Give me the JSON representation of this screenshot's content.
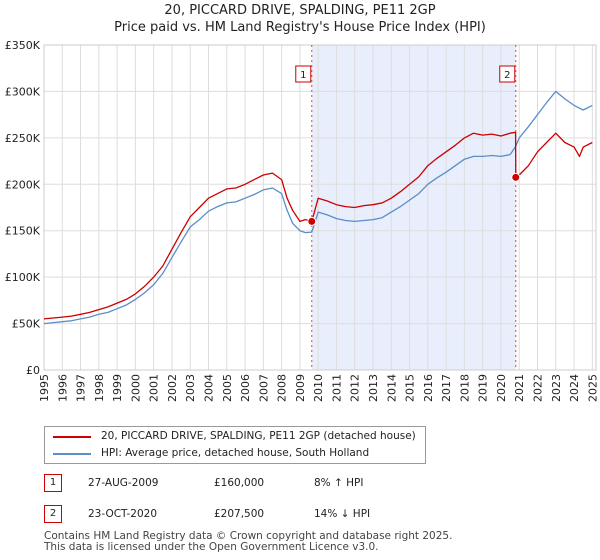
{
  "title_line1": "20, PICCARD DRIVE, SPALDING, PE11 2GP",
  "title_line2": "Price paid vs. HM Land Registry's House Price Index (HPI)",
  "chart_data": {
    "type": "line",
    "title": "20, PICCARD DRIVE, SPALDING, PE11 2GP",
    "subtitle": "Price paid vs. HM Land Registry's House Price Index (HPI)",
    "xlabel": "",
    "ylabel": "",
    "xlim": [
      1995,
      2025.2
    ],
    "ylim": [
      0,
      350000
    ],
    "y_ticks": [
      0,
      50000,
      100000,
      150000,
      200000,
      250000,
      300000,
      350000
    ],
    "y_tick_labels": [
      "£0",
      "£50K",
      "£100K",
      "£150K",
      "£200K",
      "£250K",
      "£300K",
      "£350K"
    ],
    "x_ticks": [
      1995,
      1996,
      1997,
      1998,
      1999,
      2000,
      2001,
      2002,
      2003,
      2004,
      2005,
      2006,
      2007,
      2008,
      2009,
      2010,
      2011,
      2012,
      2013,
      2014,
      2015,
      2016,
      2017,
      2018,
      2019,
      2020,
      2021,
      2022,
      2023,
      2024,
      2025
    ],
    "x_tick_labels": [
      "1995",
      "1996",
      "1997",
      "1998",
      "1999",
      "2000",
      "2001",
      "2002",
      "2003",
      "2004",
      "2005",
      "2006",
      "2007",
      "2008",
      "2009",
      "2010",
      "2011",
      "2012",
      "2013",
      "2014",
      "2015",
      "2016",
      "2017",
      "2018",
      "2019",
      "2020",
      "2021",
      "2022",
      "2023",
      "2024",
      "2025"
    ],
    "grid": true,
    "shaded_region": [
      2009.65,
      2020.81
    ],
    "series": [
      {
        "name": "20, PICCARD DRIVE, SPALDING, PE11 2GP (detached house)",
        "color": "#cc0000",
        "x": [
          1995,
          1995.5,
          1996,
          1996.5,
          1997,
          1997.5,
          1998,
          1998.5,
          1999,
          1999.5,
          2000,
          2000.5,
          2001,
          2001.5,
          2002,
          2002.5,
          2003,
          2003.5,
          2004,
          2004.5,
          2005,
          2005.5,
          2006,
          2006.5,
          2007,
          2007.5,
          2008,
          2008.3,
          2008.6,
          2009,
          2009.3,
          2009.65,
          2010,
          2010.5,
          2011,
          2011.5,
          2012,
          2012.5,
          2013,
          2013.5,
          2014,
          2014.5,
          2015,
          2015.5,
          2016,
          2016.5,
          2017,
          2017.5,
          2018,
          2018.5,
          2019,
          2019.5,
          2020,
          2020.5,
          2020.8,
          2020.81,
          2021,
          2021.5,
          2022,
          2022.5,
          2023,
          2023.5,
          2024,
          2024.3,
          2024.5,
          2025
        ],
        "y": [
          55000,
          56000,
          57000,
          58000,
          60000,
          62000,
          65000,
          68000,
          72000,
          76000,
          82000,
          90000,
          100000,
          112000,
          130000,
          148000,
          165000,
          175000,
          185000,
          190000,
          195000,
          196000,
          200000,
          205000,
          210000,
          212000,
          205000,
          185000,
          172000,
          160000,
          162000,
          160000,
          185000,
          182000,
          178000,
          176000,
          175000,
          177000,
          178000,
          180000,
          185000,
          192000,
          200000,
          208000,
          220000,
          228000,
          235000,
          242000,
          250000,
          255000,
          253000,
          254000,
          252000,
          255000,
          256000,
          207500,
          210000,
          220000,
          235000,
          245000,
          255000,
          245000,
          240000,
          230000,
          240000,
          245000
        ]
      },
      {
        "name": "HPI: Average price, detached house, South Holland",
        "color": "#5b8dc9",
        "x": [
          1995,
          1995.5,
          1996,
          1996.5,
          1997,
          1997.5,
          1998,
          1998.5,
          1999,
          1999.5,
          2000,
          2000.5,
          2001,
          2001.5,
          2002,
          2002.5,
          2003,
          2003.5,
          2004,
          2004.5,
          2005,
          2005.5,
          2006,
          2006.5,
          2007,
          2007.5,
          2008,
          2008.3,
          2008.6,
          2009,
          2009.3,
          2009.65,
          2010,
          2010.5,
          2011,
          2011.5,
          2012,
          2012.5,
          2013,
          2013.5,
          2014,
          2014.5,
          2015,
          2015.5,
          2016,
          2016.5,
          2017,
          2017.5,
          2018,
          2018.5,
          2019,
          2019.5,
          2020,
          2020.5,
          2020.81,
          2021,
          2021.5,
          2022,
          2022.5,
          2023,
          2023.5,
          2024,
          2024.5,
          2025
        ],
        "y": [
          50000,
          51000,
          52000,
          53000,
          55000,
          57000,
          60000,
          62000,
          66000,
          70000,
          76000,
          83000,
          92000,
          104000,
          121000,
          138000,
          154000,
          162000,
          171000,
          176000,
          180000,
          181000,
          185000,
          189000,
          194000,
          196000,
          190000,
          172000,
          158000,
          150000,
          148000,
          148500,
          170000,
          167000,
          163000,
          161000,
          160000,
          161000,
          162000,
          164000,
          170000,
          176000,
          183000,
          190000,
          200000,
          207000,
          213000,
          220000,
          227000,
          230000,
          230000,
          231000,
          230000,
          232000,
          241000,
          250000,
          262000,
          275000,
          288000,
          300000,
          292000,
          285000,
          280000,
          285000
        ]
      }
    ],
    "transactions": [
      {
        "marker": "1",
        "x": 2009.65,
        "price": 160000
      },
      {
        "marker": "2",
        "x": 2020.81,
        "price": 207500
      }
    ]
  },
  "legend": {
    "items": [
      {
        "label": "20, PICCARD DRIVE, SPALDING, PE11 2GP (detached house)",
        "color": "#cc0000"
      },
      {
        "label": "HPI: Average price, detached house, South Holland",
        "color": "#5b8dc9"
      }
    ]
  },
  "transactions_table": [
    {
      "marker": "1",
      "date": "27-AUG-2009",
      "price": "£160,000",
      "hpi": "8% ↑ HPI"
    },
    {
      "marker": "2",
      "date": "23-OCT-2020",
      "price": "£207,500",
      "hpi": "14% ↓ HPI"
    }
  ],
  "footer": {
    "line1": "Contains HM Land Registry data © Crown copyright and database right 2025.",
    "line2": "This data is licensed under the Open Government Licence v3.0."
  },
  "colors": {
    "property_line": "#cc0000",
    "hpi_line": "#5b8dc9",
    "shade": "#e8eefb",
    "grid": "#dddddd",
    "marker_border": "#cc0000"
  }
}
